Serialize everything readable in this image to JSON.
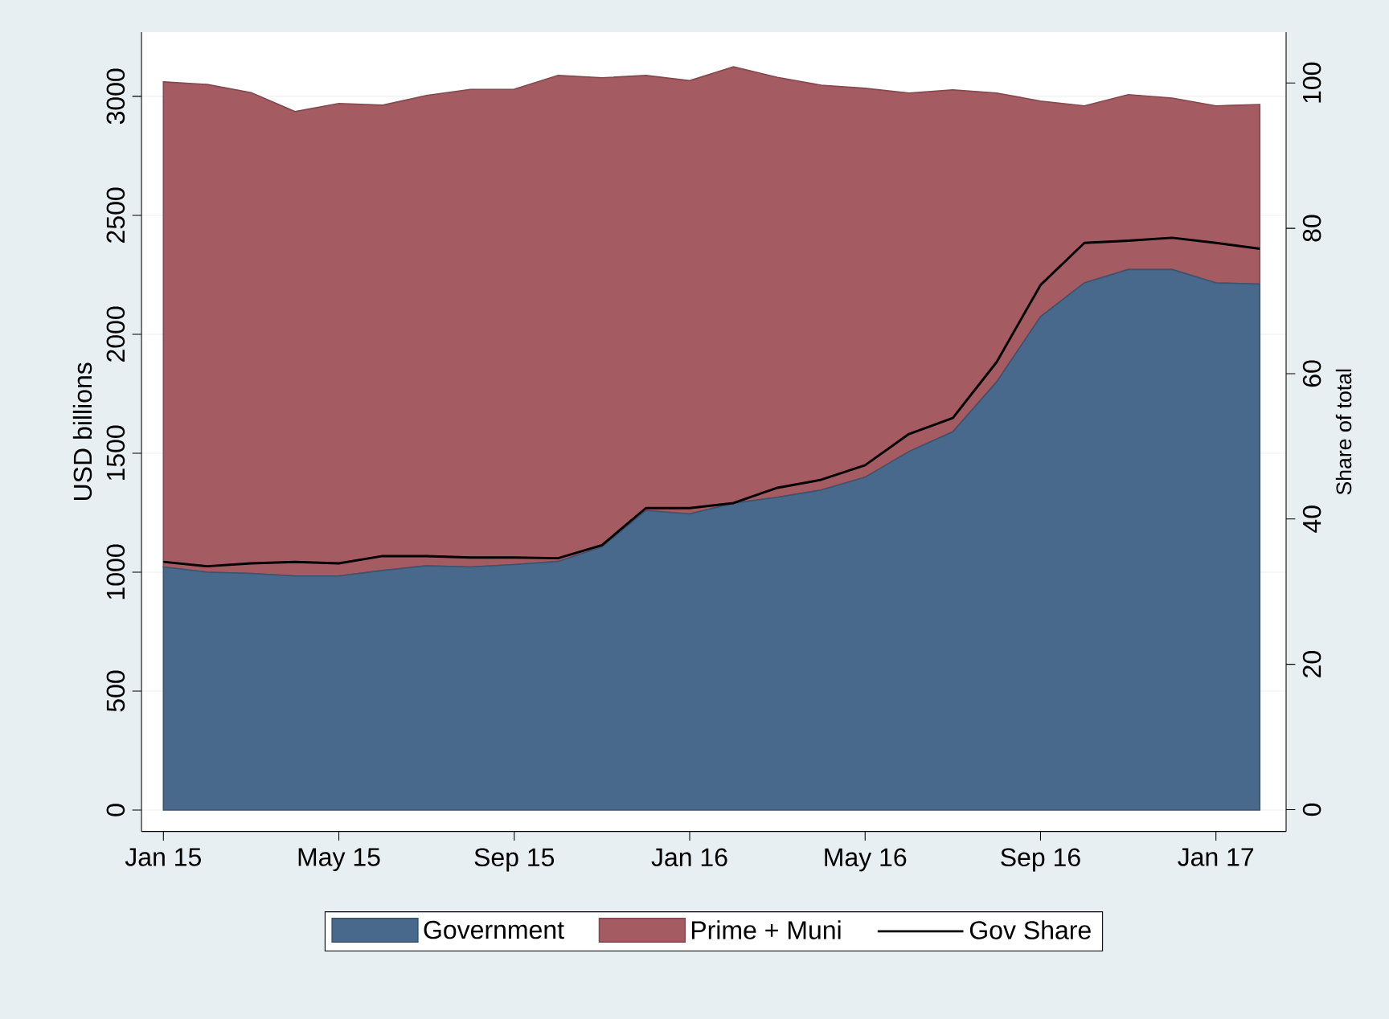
{
  "chart_data": {
    "type": "area",
    "stacked": true,
    "x": [
      "2015-01",
      "2015-02",
      "2015-03",
      "2015-04",
      "2015-05",
      "2015-06",
      "2015-07",
      "2015-08",
      "2015-09",
      "2015-10",
      "2015-11",
      "2015-12",
      "2016-01",
      "2016-02",
      "2016-03",
      "2016-04",
      "2016-05",
      "2016-06",
      "2016-07",
      "2016-08",
      "2016-09",
      "2016-10",
      "2016-11",
      "2016-12",
      "2017-01",
      "2017-02"
    ],
    "series": [
      {
        "name": "Government",
        "color": "#48698b",
        "values": [
          1022,
          1000,
          995,
          984,
          984,
          1007,
          1027,
          1022,
          1032,
          1045,
          1106,
          1259,
          1245,
          1290,
          1315,
          1345,
          1399,
          1507,
          1590,
          1800,
          2074,
          2216,
          2272,
          2272,
          2216,
          2211
        ]
      },
      {
        "name": "Prime + Muni",
        "color": "#a45b61",
        "values": [
          2039,
          2050,
          2021,
          1952,
          1986,
          1956,
          1977,
          2007,
          1998,
          2043,
          1972,
          1829,
          1821,
          1834,
          1765,
          1702,
          1635,
          1507,
          1437,
          1214,
          906,
          744,
          735,
          721,
          744,
          755
        ]
      },
      {
        "name": "Gov Share",
        "type": "line",
        "axis": "y2",
        "color": "#000000",
        "values": [
          34.1,
          33.5,
          33.9,
          34.1,
          33.9,
          34.9,
          34.9,
          34.7,
          34.7,
          34.6,
          36.4,
          41.5,
          41.5,
          42.2,
          44.3,
          45.4,
          47.4,
          51.7,
          53.9,
          61.6,
          72.2,
          78.0,
          78.3,
          78.7,
          78.0,
          77.2
        ]
      }
    ],
    "xlim": [
      "2014-12-16",
      "2017-02-19"
    ],
    "xticks": [
      {
        "value": "2015-01",
        "label": "Jan 15"
      },
      {
        "value": "2015-05",
        "label": "May 15"
      },
      {
        "value": "2015-09",
        "label": "Sep 15"
      },
      {
        "value": "2016-01",
        "label": "Jan 16"
      },
      {
        "value": "2016-05",
        "label": "May 16"
      },
      {
        "value": "2016-09",
        "label": "Sep 16"
      },
      {
        "value": "2017-01",
        "label": "Jan 17"
      }
    ],
    "ylim": [
      -90,
      3270
    ],
    "yticks": [
      0,
      500,
      1000,
      1500,
      2000,
      2500,
      3000
    ],
    "y2lim": [
      -3,
      107
    ],
    "y2ticks": [
      0,
      20,
      40,
      60,
      80,
      100
    ],
    "ylabel": "USD billions",
    "y2label": "Share of total",
    "grid": "y",
    "legend": "bottom"
  }
}
